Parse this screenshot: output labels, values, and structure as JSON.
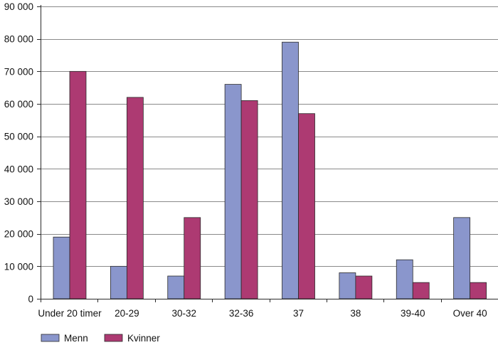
{
  "colors": {
    "Menn": "#8a96cc",
    "Kvinner": "#ad3a72",
    "bar_stroke": "#2a2a2a",
    "grid": "#8a8a8a",
    "axis": "#2a2a2a"
  },
  "chart_data": {
    "type": "bar",
    "title": "",
    "xlabel": "",
    "ylabel": "",
    "categories": [
      "Under 20 timer",
      "20-29",
      "30-32",
      "32-36",
      "37",
      "38",
      "39-40",
      "Over 40"
    ],
    "series": [
      {
        "name": "Menn",
        "values": [
          19000,
          10000,
          7000,
          66000,
          79000,
          8000,
          12000,
          25000
        ]
      },
      {
        "name": "Kvinner",
        "values": [
          70000,
          62000,
          25000,
          61000,
          57000,
          7000,
          5000,
          5000
        ]
      }
    ],
    "ylim": [
      0,
      90000
    ],
    "yticks": [
      0,
      10000,
      20000,
      30000,
      40000,
      50000,
      60000,
      70000,
      80000,
      90000
    ],
    "ytick_labels": [
      "0",
      "10 000",
      "20 000",
      "30 000",
      "40 000",
      "50 000",
      "60 000",
      "70 000",
      "80 000",
      "90 000"
    ],
    "grid": true,
    "legend_position": "bottom-left"
  }
}
